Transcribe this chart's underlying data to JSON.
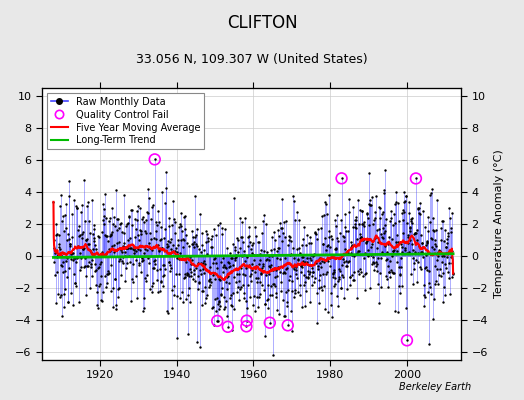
{
  "title": "CLIFTON",
  "subtitle": "33.056 N, 109.307 W (United States)",
  "ylabel": "Temperature Anomaly (°C)",
  "attribution": "Berkeley Earth",
  "xlim": [
    1905,
    2014
  ],
  "ylim": [
    -6.5,
    10.5
  ],
  "yticks": [
    -6,
    -4,
    -2,
    0,
    2,
    4,
    6,
    8,
    10
  ],
  "xticks": [
    1920,
    1940,
    1960,
    1980,
    2000
  ],
  "year_start": 1908,
  "year_end": 2012,
  "bg_color": "#e8e8e8",
  "plot_bg": "#ffffff",
  "line_color": "#4444ff",
  "dot_color": "#000000",
  "ma_color": "#ff0000",
  "trend_color": "#00bb00",
  "qc_color": "#ff00ff",
  "grid_color": "#cccccc",
  "title_fontsize": 12,
  "subtitle_fontsize": 9,
  "label_fontsize": 8,
  "tick_fontsize": 8,
  "figwidth": 5.24,
  "figheight": 4.0,
  "dpi": 100
}
